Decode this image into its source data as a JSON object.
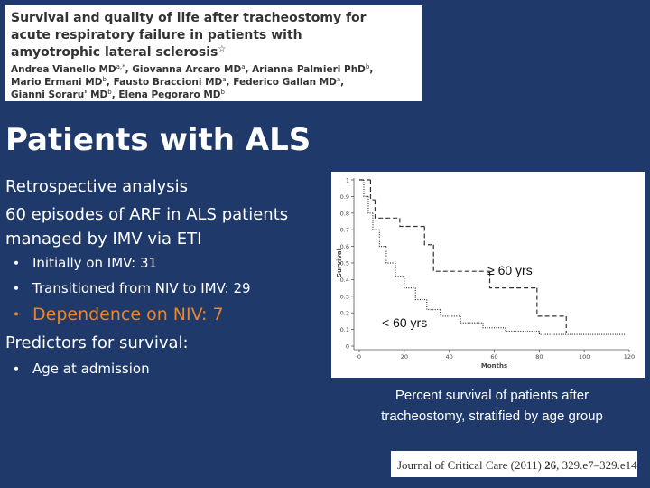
{
  "header": {
    "title_lines": [
      "Survival and quality of life after tracheostomy for",
      "acute respiratory failure in patients with",
      "amyotrophic lateral sclerosis"
    ],
    "title_mark": "☆",
    "author_lines": [
      [
        {
          "name": "Andrea Vianello MD",
          "sup": "a,*",
          "after": ", "
        },
        {
          "name": "Giovanna Arcaro MD",
          "sup": "a",
          "after": ", "
        },
        {
          "name": "Arianna Palmieri PhD",
          "sup": "b",
          "after": ","
        }
      ],
      [
        {
          "name": "Mario Ermani MD",
          "sup": "b",
          "after": ", "
        },
        {
          "name": "Fausto Braccioni MD",
          "sup": "a",
          "after": ", "
        },
        {
          "name": "Federico Gallan MD",
          "sup": "a",
          "after": ","
        }
      ],
      [
        {
          "name": "Gianni Soraru' MD",
          "sup": "b",
          "after": ", "
        },
        {
          "name": "Elena Pegoraro MD",
          "sup": "b",
          "after": ""
        }
      ]
    ]
  },
  "slide_title": "Patients with ALS",
  "body": [
    {
      "text": "Retrospective analysis",
      "level": 0
    },
    {
      "text": "60 episodes of ARF in ALS patients",
      "level": 0
    },
    {
      "text": "managed by IMV via ETI",
      "level": 0
    },
    {
      "text": "Initially on IMV: 31",
      "level": 1
    },
    {
      "text": "Transitioned from NIV to  IMV: 29",
      "level": 1
    },
    {
      "text": "Dependence on NIV: 7",
      "level": 1,
      "highlight": true
    },
    {
      "text": "Predictors for survival:",
      "level": 0
    },
    {
      "text": "Age at admission",
      "level": 1
    }
  ],
  "chart_data": {
    "type": "step",
    "ylabel": "Survival",
    "xlabel": "Months",
    "xlim": [
      0,
      120
    ],
    "xticks": [
      0,
      20,
      40,
      60,
      80,
      100,
      120
    ],
    "ylim": [
      0,
      1
    ],
    "yticks": [
      0,
      0.1,
      0.2,
      0.3,
      0.4,
      0.5,
      0.6,
      0.7,
      0.8,
      0.9,
      1
    ],
    "series": [
      {
        "name": "≥ 60 yrs",
        "dash": "dashed",
        "x": [
          0,
          5,
          7,
          18,
          29,
          33,
          58,
          79,
          92
        ],
        "values": [
          1,
          0.88,
          0.77,
          0.72,
          0.61,
          0.45,
          0.35,
          0.18,
          0.08
        ]
      },
      {
        "name": "< 60 yrs",
        "dash": "dotted",
        "x": [
          0,
          2,
          4,
          6,
          9,
          12,
          16,
          20,
          25,
          30,
          36,
          45,
          55,
          65,
          80,
          118
        ],
        "values": [
          1,
          0.9,
          0.8,
          0.7,
          0.6,
          0.5,
          0.42,
          0.35,
          0.28,
          0.22,
          0.18,
          0.14,
          0.11,
          0.09,
          0.07,
          0.07
        ]
      }
    ]
  },
  "caption_lines": [
    "Percent survival of patients after",
    "tracheostomy, stratified by age group"
  ],
  "citation": {
    "journal": "Journal of Critical Care (2011) ",
    "volume": "26",
    "pages": ", 329.e7–329.e14"
  }
}
